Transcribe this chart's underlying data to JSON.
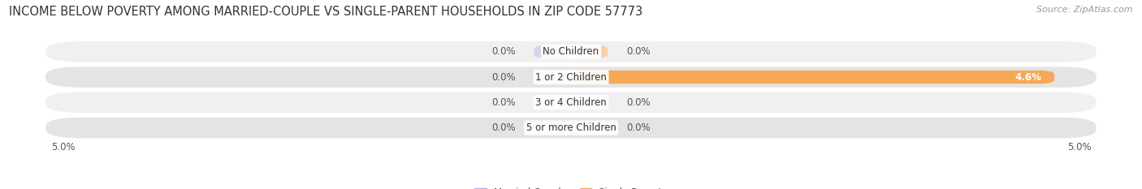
{
  "title": "INCOME BELOW POVERTY AMONG MARRIED-COUPLE VS SINGLE-PARENT HOUSEHOLDS IN ZIP CODE 57773",
  "source": "Source: ZipAtlas.com",
  "categories": [
    "No Children",
    "1 or 2 Children",
    "3 or 4 Children",
    "5 or more Children"
  ],
  "married_values": [
    0.0,
    0.0,
    0.0,
    0.0
  ],
  "single_values": [
    0.0,
    4.6,
    0.0,
    0.0
  ],
  "xlim": 5.0,
  "married_color": "#aab0d8",
  "married_color_light": "#d0d5ea",
  "single_color": "#f5a855",
  "single_color_light": "#f8cfaa",
  "row_bg_odd": "#f0f0f0",
  "row_bg_even": "#e4e4e4",
  "title_fontsize": 10.5,
  "source_fontsize": 8,
  "label_fontsize": 8.5,
  "tick_fontsize": 8.5,
  "legend_fontsize": 8.5,
  "bar_height": 0.52,
  "zero_bar_width": 0.35
}
